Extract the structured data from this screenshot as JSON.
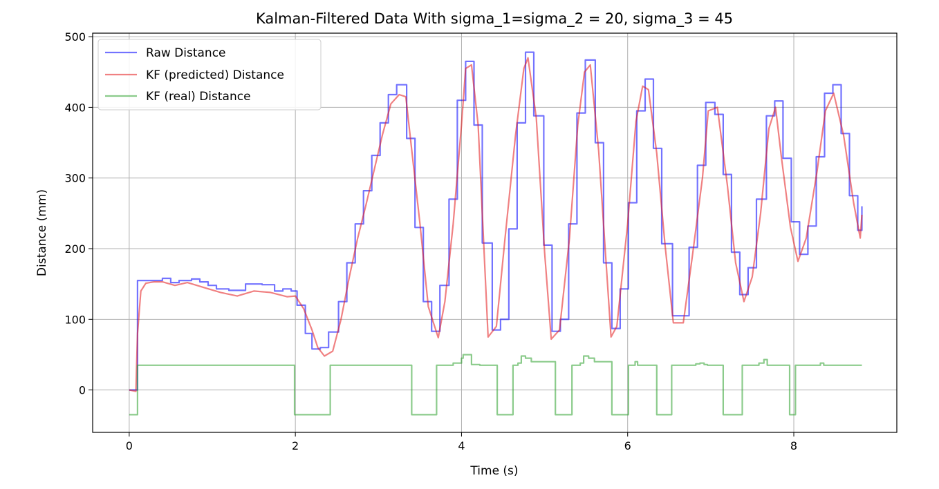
{
  "chart_data": {
    "type": "line",
    "title": "Kalman-Filtered Data With sigma_1=sigma_2 = 20, sigma_3 = 45",
    "xlabel": "Time (s)",
    "ylabel": "Distance (mm)",
    "xlim": [
      -0.44,
      9.24
    ],
    "ylim": [
      -60,
      505
    ],
    "xticks": [
      0,
      2,
      4,
      6,
      8
    ],
    "yticks": [
      0,
      100,
      200,
      300,
      400,
      500
    ],
    "xtick_labels": [
      "0",
      "2",
      "4",
      "6",
      "8"
    ],
    "ytick_labels": [
      "0",
      "100",
      "200",
      "300",
      "400",
      "500"
    ],
    "grid": true,
    "legend_position": "top-left",
    "series": [
      {
        "name": "Raw Distance",
        "color": "#0000ff",
        "step": true,
        "x": [
          0,
          0.1,
          0.1,
          0.4,
          0.5,
          0.6,
          0.75,
          0.85,
          0.95,
          1.05,
          1.2,
          1.4,
          1.6,
          1.75,
          1.85,
          1.95,
          2.02,
          2.12,
          2.2,
          2.3,
          2.4,
          2.52,
          2.62,
          2.72,
          2.82,
          2.92,
          3.02,
          3.12,
          3.22,
          3.34,
          3.44,
          3.54,
          3.64,
          3.74,
          3.85,
          3.95,
          4.05,
          4.15,
          4.25,
          4.37,
          4.47,
          4.57,
          4.67,
          4.77,
          4.87,
          4.99,
          5.09,
          5.19,
          5.29,
          5.39,
          5.49,
          5.61,
          5.71,
          5.81,
          5.91,
          6.01,
          6.11,
          6.21,
          6.31,
          6.41,
          6.54,
          6.64,
          6.74,
          6.84,
          6.94,
          7.05,
          7.15,
          7.25,
          7.35,
          7.45,
          7.55,
          7.67,
          7.77,
          7.87,
          7.97,
          8.07,
          8.17,
          8.27,
          8.37,
          8.47,
          8.57,
          8.67,
          8.77,
          8.82
        ],
        "y": [
          0,
          0,
          155,
          158,
          152,
          155,
          157,
          153,
          148,
          143,
          141,
          150,
          149,
          140,
          143,
          140,
          120,
          80,
          58,
          60,
          82,
          125,
          180,
          235,
          282,
          332,
          378,
          418,
          432,
          356,
          230,
          125,
          83,
          148,
          270,
          410,
          465,
          375,
          208,
          85,
          100,
          228,
          378,
          478,
          388,
          205,
          83,
          100,
          235,
          392,
          467,
          350,
          180,
          87,
          143,
          265,
          395,
          440,
          342,
          207,
          105,
          105,
          202,
          318,
          407,
          390,
          305,
          195,
          135,
          173,
          270,
          388,
          409,
          328,
          238,
          192,
          232,
          330,
          420,
          432,
          363,
          275,
          226,
          260
        ]
      },
      {
        "name": "KF (predicted) Distance",
        "color": "#e41a1c",
        "x": [
          0,
          0.08,
          0.1,
          0.14,
          0.2,
          0.3,
          0.4,
          0.55,
          0.7,
          0.9,
          1.1,
          1.3,
          1.5,
          1.7,
          1.9,
          2.0,
          2.1,
          2.2,
          2.27,
          2.35,
          2.45,
          2.55,
          2.65,
          2.75,
          2.85,
          2.95,
          3.05,
          3.15,
          3.25,
          3.33,
          3.4,
          3.5,
          3.6,
          3.72,
          3.8,
          3.9,
          4.0,
          4.05,
          4.12,
          4.2,
          4.32,
          4.42,
          4.52,
          4.65,
          4.75,
          4.8,
          4.9,
          5.0,
          5.08,
          5.18,
          5.3,
          5.4,
          5.48,
          5.55,
          5.65,
          5.8,
          5.87,
          6.0,
          6.1,
          6.18,
          6.25,
          6.35,
          6.45,
          6.55,
          6.67,
          6.78,
          6.9,
          6.97,
          7.08,
          7.2,
          7.3,
          7.4,
          7.5,
          7.6,
          7.7,
          7.78,
          7.85,
          7.96,
          8.05,
          8.15,
          8.28,
          8.38,
          8.48,
          8.6,
          8.72,
          8.8,
          8.82
        ],
        "y": [
          0,
          -2,
          80,
          140,
          151,
          153,
          153,
          148,
          152,
          145,
          138,
          133,
          140,
          138,
          132,
          133,
          115,
          85,
          60,
          48,
          55,
          100,
          160,
          215,
          262,
          312,
          362,
          405,
          418,
          415,
          340,
          235,
          118,
          74,
          125,
          235,
          375,
          455,
          460,
          375,
          75,
          90,
          210,
          360,
          455,
          470,
          385,
          195,
          72,
          85,
          215,
          375,
          450,
          460,
          340,
          75,
          90,
          235,
          380,
          430,
          425,
          335,
          205,
          95,
          95,
          190,
          300,
          395,
          400,
          290,
          180,
          125,
          160,
          250,
          370,
          400,
          330,
          230,
          182,
          215,
          310,
          395,
          420,
          360,
          265,
          215,
          248
        ]
      },
      {
        "name": "KF (real) Distance",
        "color": "#2ca02c",
        "step": true,
        "x": [
          0,
          0.1,
          0.1,
          1.99,
          2.42,
          3.4,
          3.7,
          3.9,
          4.0,
          4.02,
          4.12,
          4.22,
          4.43,
          4.62,
          4.68,
          4.72,
          4.77,
          4.84,
          5.13,
          5.33,
          5.43,
          5.47,
          5.53,
          5.6,
          5.81,
          6.01,
          6.09,
          6.12,
          6.35,
          6.53,
          6.82,
          6.87,
          6.92,
          6.96,
          7.15,
          7.38,
          7.58,
          7.64,
          7.68,
          7.95,
          8.02,
          8.32,
          8.36,
          8.82
        ],
        "y": [
          -35,
          -35,
          35,
          -35,
          35,
          -35,
          35,
          38,
          45,
          50,
          36,
          35,
          -35,
          35,
          38,
          48,
          45,
          40,
          -35,
          35,
          38,
          48,
          45,
          40,
          -35,
          35,
          40,
          35,
          -35,
          35,
          37,
          38,
          36,
          35,
          -35,
          35,
          38,
          43,
          35,
          -35,
          35,
          38,
          35,
          35
        ]
      }
    ]
  }
}
